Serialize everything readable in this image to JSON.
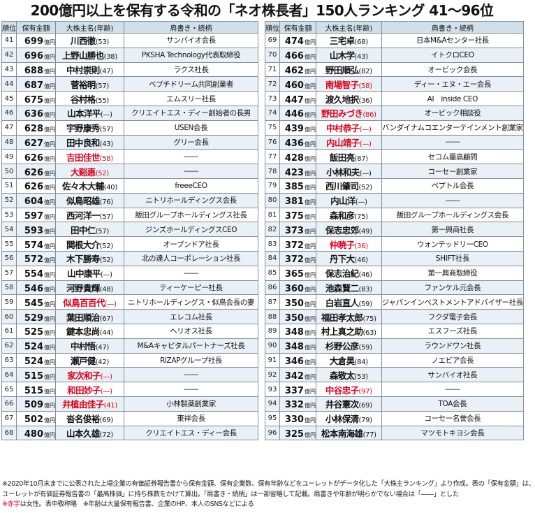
{
  "title": "200億円以上を保有する令和の「ネオ株長者」150人ランキング 41〜96位",
  "headers": {
    "rank": "順位",
    "amount": "保有金額",
    "name": "大株主名(年齢)",
    "title": "肩書き・続柄"
  },
  "unit": "億円",
  "left_rows": [
    {
      "rank": "41",
      "amount": "699",
      "name": "川西徹",
      "age": "(53)",
      "title": "サンバイオ会長",
      "female": false
    },
    {
      "rank": "42",
      "amount": "696",
      "name": "上野山勝也",
      "age": "(38)",
      "title": "PKSHA Technology代表取締役",
      "female": false
    },
    {
      "rank": "43",
      "amount": "688",
      "name": "中村崇則",
      "age": "(47)",
      "title": "ラクス社長",
      "female": false
    },
    {
      "rank": "44",
      "amount": "687",
      "name": "菅裕明",
      "age": "(57)",
      "title": "ペプチドリーム共同創業者",
      "female": false
    },
    {
      "rank": "45",
      "amount": "675",
      "name": "谷村格",
      "age": "(55)",
      "title": "エムスリー社長",
      "female": false
    },
    {
      "rank": "46",
      "amount": "636",
      "name": "山本洋平",
      "age": "(―)",
      "title": "クリエイトエス・ディー創始者の長男",
      "female": false
    },
    {
      "rank": "47",
      "amount": "628",
      "name": "宇野康秀",
      "age": "(57)",
      "title": "USEN会長",
      "female": false
    },
    {
      "rank": "48",
      "amount": "627",
      "name": "田中良和",
      "age": "(43)",
      "title": "グリー会長",
      "female": false
    },
    {
      "rank": "49",
      "amount": "626",
      "name": "吉田佳世",
      "age": "(58)",
      "title": "――",
      "female": true
    },
    {
      "rank": "50",
      "amount": "626",
      "name": "大谿惠",
      "age": "(52)",
      "title": "――",
      "female": true
    },
    {
      "rank": "51",
      "amount": "626",
      "name": "佐々木大輔",
      "age": "(40)",
      "title": "freeeCEO",
      "female": false
    },
    {
      "rank": "52",
      "amount": "604",
      "name": "似鳥昭雄",
      "age": "(76)",
      "title": "ニトリホールディングス会長",
      "female": false
    },
    {
      "rank": "53",
      "amount": "597",
      "name": "西河洋一",
      "age": "(57)",
      "title": "飯田グループホールディングス社長",
      "female": false
    },
    {
      "rank": "54",
      "amount": "593",
      "name": "田中仁",
      "age": "(57)",
      "title": "ジンズホールディングスCEO",
      "female": false
    },
    {
      "rank": "55",
      "amount": "574",
      "name": "関根大介",
      "age": "(52)",
      "title": "オープンドア社長",
      "female": false
    },
    {
      "rank": "56",
      "amount": "572",
      "name": "木下勝寿",
      "age": "(52)",
      "title": "北の達人コーポレーション社長",
      "female": false
    },
    {
      "rank": "57",
      "amount": "554",
      "name": "山中康平",
      "age": "(―)",
      "title": "――",
      "female": false
    },
    {
      "rank": "58",
      "amount": "546",
      "name": "河野貴輝",
      "age": "(48)",
      "title": "ティーケーピー社長",
      "female": false
    },
    {
      "rank": "59",
      "amount": "545",
      "name": "似鳥百百代",
      "age": "(―)",
      "title": "ニトリホールディングス・似鳥会長の妻",
      "female": true
    },
    {
      "rank": "60",
      "amount": "529",
      "name": "葉田順治",
      "age": "(67)",
      "title": "エレコム社長",
      "female": false
    },
    {
      "rank": "61",
      "amount": "525",
      "name": "鍵本忠尚",
      "age": "(44)",
      "title": "ヘリオス社長",
      "female": false
    },
    {
      "rank": "62",
      "amount": "524",
      "name": "中村悟",
      "age": "(47)",
      "title": "M&Aキャピタルパートナーズ社長",
      "female": false
    },
    {
      "rank": "63",
      "amount": "524",
      "name": "瀬戸健",
      "age": "(42)",
      "title": "RIZAPグループ社長",
      "female": false
    },
    {
      "rank": "64",
      "amount": "515",
      "name": "家次和子",
      "age": "(―)",
      "title": "――",
      "female": true
    },
    {
      "rank": "65",
      "amount": "515",
      "name": "和田妙子",
      "age": "(―)",
      "title": "――",
      "female": true
    },
    {
      "rank": "66",
      "amount": "509",
      "name": "井植由佳子",
      "age": "(41)",
      "title": "小林製薬創業家",
      "female": true
    },
    {
      "rank": "67",
      "amount": "502",
      "name": "沓名俊裕",
      "age": "(69)",
      "title": "東祥会長",
      "female": false
    },
    {
      "rank": "68",
      "amount": "480",
      "name": "山本久雄",
      "age": "(72)",
      "title": "クリエイトエス・ディー会長",
      "female": false
    }
  ],
  "right_rows": [
    {
      "rank": "69",
      "amount": "474",
      "name": "三宅卓",
      "age": "(68)",
      "title": "日本M&Aセンター社長",
      "female": false
    },
    {
      "rank": "70",
      "amount": "466",
      "name": "山木学",
      "age": "(43)",
      "title": "イトクロCEO",
      "female": false
    },
    {
      "rank": "71",
      "amount": "462",
      "name": "野田順弘",
      "age": "(82)",
      "title": "オービック会長",
      "female": false
    },
    {
      "rank": "72",
      "amount": "460",
      "name": "南場智子",
      "age": "(58)",
      "title": "ディー・エヌ・エー会長",
      "female": true
    },
    {
      "rank": "73",
      "amount": "447",
      "name": "渡久地択",
      "age": "(36)",
      "title": "AI　inside CEO",
      "female": false
    },
    {
      "rank": "74",
      "amount": "446",
      "name": "野田みづき",
      "age": "(86)",
      "title": "オービック相談役",
      "female": true
    },
    {
      "rank": "75",
      "amount": "439",
      "name": "中村恭子",
      "age": "(―)",
      "title": "バンダイナムコエンターテインメント創業家",
      "female": true
    },
    {
      "rank": "76",
      "amount": "436",
      "name": "内山靖子",
      "age": "(―)",
      "title": "――",
      "female": true
    },
    {
      "rank": "77",
      "amount": "428",
      "name": "飯田亮",
      "age": "(87)",
      "title": "セコム最高顧問",
      "female": false
    },
    {
      "rank": "78",
      "amount": "423",
      "name": "小林和夫",
      "age": "(―)",
      "title": "コーセー創業家",
      "female": false
    },
    {
      "rank": "79",
      "amount": "385",
      "name": "西川肇司",
      "age": "(52)",
      "title": "ペプトル会長",
      "female": false
    },
    {
      "rank": "80",
      "amount": "381",
      "name": "内山洋",
      "age": "(―)",
      "title": "――",
      "female": false
    },
    {
      "rank": "81",
      "amount": "375",
      "name": "森和彦",
      "age": "(75)",
      "title": "飯田グループホールディングス会長",
      "female": false
    },
    {
      "rank": "82",
      "amount": "373",
      "name": "保志忠郊",
      "age": "(49)",
      "title": "第一興商社長",
      "female": false
    },
    {
      "rank": "83",
      "amount": "372",
      "name": "仲暁子",
      "age": "(36)",
      "title": "ウォンテッドリーCEO",
      "female": true
    },
    {
      "rank": "84",
      "amount": "372",
      "name": "丹下大",
      "age": "(46)",
      "title": "SHIFT社長",
      "female": false
    },
    {
      "rank": "85",
      "amount": "365",
      "name": "保志治紀",
      "age": "(46)",
      "title": "第一興商取締役",
      "female": false
    },
    {
      "rank": "86",
      "amount": "360",
      "name": "池森賢二",
      "age": "(83)",
      "title": "ファンケル元会長",
      "female": false
    },
    {
      "rank": "87",
      "amount": "350",
      "name": "白岩直人",
      "age": "(59)",
      "title": "ジャパンインベストメントアドバイザー社長",
      "female": false
    },
    {
      "rank": "88",
      "amount": "350",
      "name": "福田孝太郎",
      "age": "(75)",
      "title": "フクダ電子会長",
      "female": false
    },
    {
      "rank": "89",
      "amount": "348",
      "name": "村上真之助",
      "age": "(63)",
      "title": "エスフーズ社長",
      "female": false
    },
    {
      "rank": "90",
      "amount": "348",
      "name": "杉野公彦",
      "age": "(59)",
      "title": "ラウンドワン社長",
      "female": false
    },
    {
      "rank": "91",
      "amount": "346",
      "name": "大倉昊",
      "age": "(84)",
      "title": "ノエビア会長",
      "female": false
    },
    {
      "rank": "92",
      "amount": "342",
      "name": "森敬太",
      "age": "(53)",
      "title": "サンバイオ社長",
      "female": false
    },
    {
      "rank": "93",
      "amount": "337",
      "name": "中谷忠子",
      "age": "(97)",
      "title": "――",
      "female": true
    },
    {
      "rank": "94",
      "amount": "332",
      "name": "井谷憲次",
      "age": "(69)",
      "title": "TOA会長",
      "female": false
    },
    {
      "rank": "95",
      "amount": "330",
      "name": "小林保清",
      "age": "(79)",
      "title": "コーセー名誉会長",
      "female": false
    },
    {
      "rank": "96",
      "amount": "325",
      "name": "松本南海雄",
      "age": "(77)",
      "title": "マツモトキヨシ会長",
      "female": false
    }
  ],
  "notes": {
    "line1": "※2020年10月末までに公表された上場企業の有価証券報告書から保有金額、保有企業数、保有年齢などをユーレットがデータ化した「大株主ランキング」より作成。表の「保有金額」は、",
    "line2": "ユーレットが有価証券報告書の「最高株価」に持ち株数をかけて算出。「肩書き・続柄」は一部省略して記載。肩書きや年齢が明らかでない場合は「――」とした",
    "line3_red": "※赤字",
    "line3_rest": "は女性。表中敬称略　※年齢は大量保有報告書、企業のHP、本人のSNSなどによる"
  }
}
